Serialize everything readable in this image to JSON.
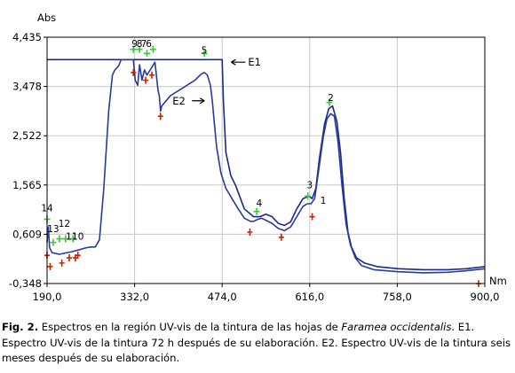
{
  "caption": {
    "fig_label": "Fig. 2.",
    "text_1": " Espectros en la región UV-vis de la tintura de las hojas de ",
    "species": "Faramea occidentalis",
    "text_2": ". E1. Espectro UV-vis de la tintura 72 h después de su elaboración. E2. Espectro UV-vis de la tintura seis meses después de su elaboración."
  },
  "colors": {
    "e1_line": "#1a2a8c",
    "e2_line": "#2a3a9c",
    "green_marker": "#33cc33",
    "red_marker": "#cc2200",
    "axis": "#000000",
    "grid": "#c8c8c8"
  },
  "chart_data": {
    "type": "line",
    "ylabel": "Abs",
    "xlabel": "Nm",
    "x_ticks": [
      "190,0",
      "332,0",
      "474,0",
      "616,0",
      "758,0",
      "900,0"
    ],
    "y_ticks": [
      "-0,348",
      "0,609",
      "1,565",
      "2,522",
      "3,478",
      "4,435"
    ],
    "xlim": [
      190,
      900
    ],
    "ylim": [
      -0.348,
      4.435
    ],
    "grid": true,
    "series": [
      {
        "name": "E1",
        "points": [
          [
            190,
            4.0
          ],
          [
            474,
            4.0
          ],
          [
            476,
            3.2
          ],
          [
            480,
            2.2
          ],
          [
            488,
            1.75
          ],
          [
            496,
            1.55
          ],
          [
            510,
            1.1
          ],
          [
            525,
            0.95
          ],
          [
            535,
            0.95
          ],
          [
            545,
            1.0
          ],
          [
            555,
            0.95
          ],
          [
            565,
            0.82
          ],
          [
            575,
            0.78
          ],
          [
            585,
            0.85
          ],
          [
            595,
            1.1
          ],
          [
            605,
            1.3
          ],
          [
            615,
            1.35
          ],
          [
            620,
            1.3
          ],
          [
            626,
            1.5
          ],
          [
            632,
            2.1
          ],
          [
            640,
            2.75
          ],
          [
            647,
            3.05
          ],
          [
            653,
            3.1
          ],
          [
            660,
            2.8
          ],
          [
            666,
            2.2
          ],
          [
            672,
            1.3
          ],
          [
            678,
            0.65
          ],
          [
            684,
            0.35
          ],
          [
            692,
            0.15
          ],
          [
            705,
            0.05
          ],
          [
            725,
            -0.02
          ],
          [
            760,
            -0.06
          ],
          [
            800,
            -0.08
          ],
          [
            840,
            -0.08
          ],
          [
            870,
            -0.06
          ],
          [
            900,
            -0.02
          ]
        ]
      },
      {
        "name": "E2",
        "points": [
          [
            190,
            0.45
          ],
          [
            192,
            0.75
          ],
          [
            194,
            0.35
          ],
          [
            198,
            0.25
          ],
          [
            210,
            0.22
          ],
          [
            230,
            0.27
          ],
          [
            240,
            0.3
          ],
          [
            255,
            0.35
          ],
          [
            262,
            0.36
          ],
          [
            268,
            0.36
          ],
          [
            275,
            0.5
          ],
          [
            282,
            1.5
          ],
          [
            290,
            3.0
          ],
          [
            296,
            3.7
          ],
          [
            300,
            3.8
          ],
          [
            304,
            3.85
          ],
          [
            307,
            3.9
          ],
          [
            310,
            4.0
          ],
          [
            330,
            4.0
          ],
          [
            333,
            3.6
          ],
          [
            337,
            3.5
          ],
          [
            340,
            3.9
          ],
          [
            344,
            3.6
          ],
          [
            348,
            3.8
          ],
          [
            352,
            3.7
          ],
          [
            360,
            3.85
          ],
          [
            365,
            3.95
          ],
          [
            370,
            3.4
          ],
          [
            372,
            3.3
          ],
          [
            374,
            3.0
          ],
          [
            376,
            3.1
          ],
          [
            390,
            3.3
          ],
          [
            410,
            3.45
          ],
          [
            430,
            3.6
          ],
          [
            440,
            3.72
          ],
          [
            445,
            3.75
          ],
          [
            450,
            3.7
          ],
          [
            455,
            3.5
          ],
          [
            458,
            3.2
          ],
          [
            461,
            2.8
          ],
          [
            465,
            2.3
          ],
          [
            472,
            1.8
          ],
          [
            480,
            1.5
          ],
          [
            490,
            1.3
          ],
          [
            500,
            1.1
          ],
          [
            510,
            0.92
          ],
          [
            520,
            0.86
          ],
          [
            525,
            0.86
          ],
          [
            532,
            0.9
          ],
          [
            538,
            0.92
          ],
          [
            545,
            0.88
          ],
          [
            555,
            0.82
          ],
          [
            565,
            0.72
          ],
          [
            575,
            0.68
          ],
          [
            585,
            0.75
          ],
          [
            595,
            0.95
          ],
          [
            605,
            1.15
          ],
          [
            612,
            1.2
          ],
          [
            618,
            1.2
          ],
          [
            624,
            1.3
          ],
          [
            630,
            1.8
          ],
          [
            638,
            2.5
          ],
          [
            644,
            2.85
          ],
          [
            650,
            2.95
          ],
          [
            656,
            2.9
          ],
          [
            662,
            2.4
          ],
          [
            668,
            1.6
          ],
          [
            675,
            0.8
          ],
          [
            682,
            0.4
          ],
          [
            690,
            0.15
          ],
          [
            700,
            0.0
          ],
          [
            720,
            -0.08
          ],
          [
            760,
            -0.12
          ],
          [
            800,
            -0.14
          ],
          [
            840,
            -0.13
          ],
          [
            870,
            -0.1
          ],
          [
            900,
            -0.06
          ]
        ]
      }
    ],
    "peak_labels": [
      {
        "label": "1",
        "x": 638,
        "y": 1.2
      },
      {
        "label": "2",
        "x": 650,
        "y": 3.2
      },
      {
        "label": "3",
        "x": 616,
        "y": 1.5
      },
      {
        "label": "4",
        "x": 534,
        "y": 1.15
      },
      {
        "label": "5",
        "x": 445,
        "y": 4.12
      },
      {
        "label": "6",
        "x": 355,
        "y": 4.25
      },
      {
        "label": "7",
        "x": 347,
        "y": 4.25
      },
      {
        "label": "8",
        "x": 340,
        "y": 4.25
      },
      {
        "label": "9",
        "x": 332,
        "y": 4.25
      },
      {
        "label": "10",
        "x": 240,
        "y": 0.5
      },
      {
        "label": "11",
        "x": 230,
        "y": 0.5
      },
      {
        "label": "12",
        "x": 218,
        "y": 0.75
      },
      {
        "label": "13",
        "x": 200,
        "y": 0.65
      },
      {
        "label": "14",
        "x": 190,
        "y": 1.05
      }
    ],
    "green_markers": [
      [
        190,
        0.9
      ],
      [
        200,
        0.45
      ],
      [
        210,
        0.52
      ],
      [
        220,
        0.52
      ],
      [
        232,
        0.52
      ],
      [
        330,
        4.2
      ],
      [
        340,
        4.2
      ],
      [
        352,
        4.12
      ],
      [
        362,
        4.2
      ],
      [
        445,
        4.12
      ],
      [
        530,
        1.05
      ],
      [
        613,
        1.35
      ],
      [
        648,
        3.17
      ]
    ],
    "red_markers": [
      [
        190,
        0.2
      ],
      [
        195,
        -0.02
      ],
      [
        214,
        0.05
      ],
      [
        226,
        0.15
      ],
      [
        236,
        0.15
      ],
      [
        240,
        0.2
      ],
      [
        330,
        3.75
      ],
      [
        350,
        3.6
      ],
      [
        360,
        3.7
      ],
      [
        374,
        2.9
      ],
      [
        519,
        0.65
      ],
      [
        570,
        0.55
      ],
      [
        620,
        0.95
      ],
      [
        890,
        -0.35
      ]
    ],
    "annotations": [
      {
        "label": "E1",
        "x": 516,
        "y": 3.95
      },
      {
        "label": "E2",
        "x": 428,
        "y": 3.2
      }
    ]
  }
}
